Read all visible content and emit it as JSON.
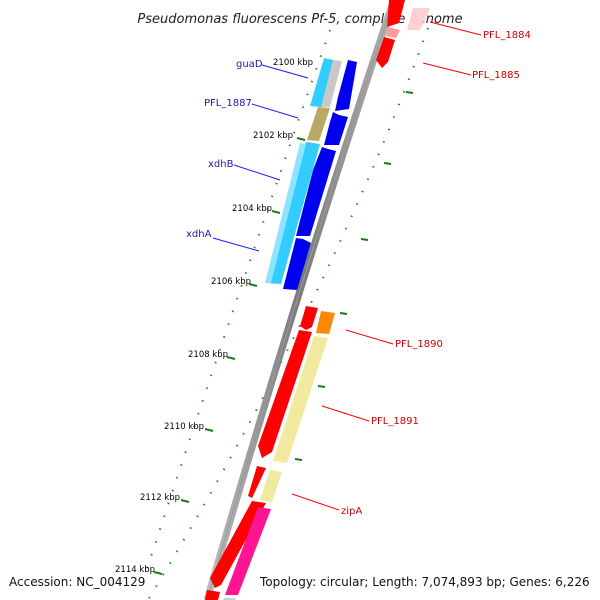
{
  "title": "Pseudomonas fluorescens Pf-5, complete genome",
  "footer": {
    "accession": "Accession: NC_004129",
    "topology": "Topology: circular; Length: 7,074,893 bp; Genes: 6,226"
  },
  "scale_ticks": [
    "2100 kbp",
    "2102 kbp",
    "2104 kbp",
    "2106 kbp",
    "2108 kbp",
    "2110 kbp",
    "2112 kbp",
    "2114 kbp"
  ],
  "genes_left": [
    {
      "name": "guaD"
    },
    {
      "name": "PFL_1887"
    },
    {
      "name": "xdhB"
    },
    {
      "name": "xdhA"
    }
  ],
  "genes_right": [
    {
      "name": "PFL_1884"
    },
    {
      "name": "PFL_1885"
    },
    {
      "name": "PFL_1890"
    },
    {
      "name": "PFL_1891"
    },
    {
      "name": "zipA"
    }
  ],
  "colors": {
    "forward_strand": "#ff0000",
    "reverse_strand": "#0000ff",
    "backbone": "#808080",
    "tick": "#1a7a1a",
    "cds_cyan": "#33ccff",
    "cds_olive": "#b8aa66",
    "cds_yellow": "#f2e9a0",
    "cds_orange": "#ff8800",
    "cds_pink": "#ff1493"
  }
}
